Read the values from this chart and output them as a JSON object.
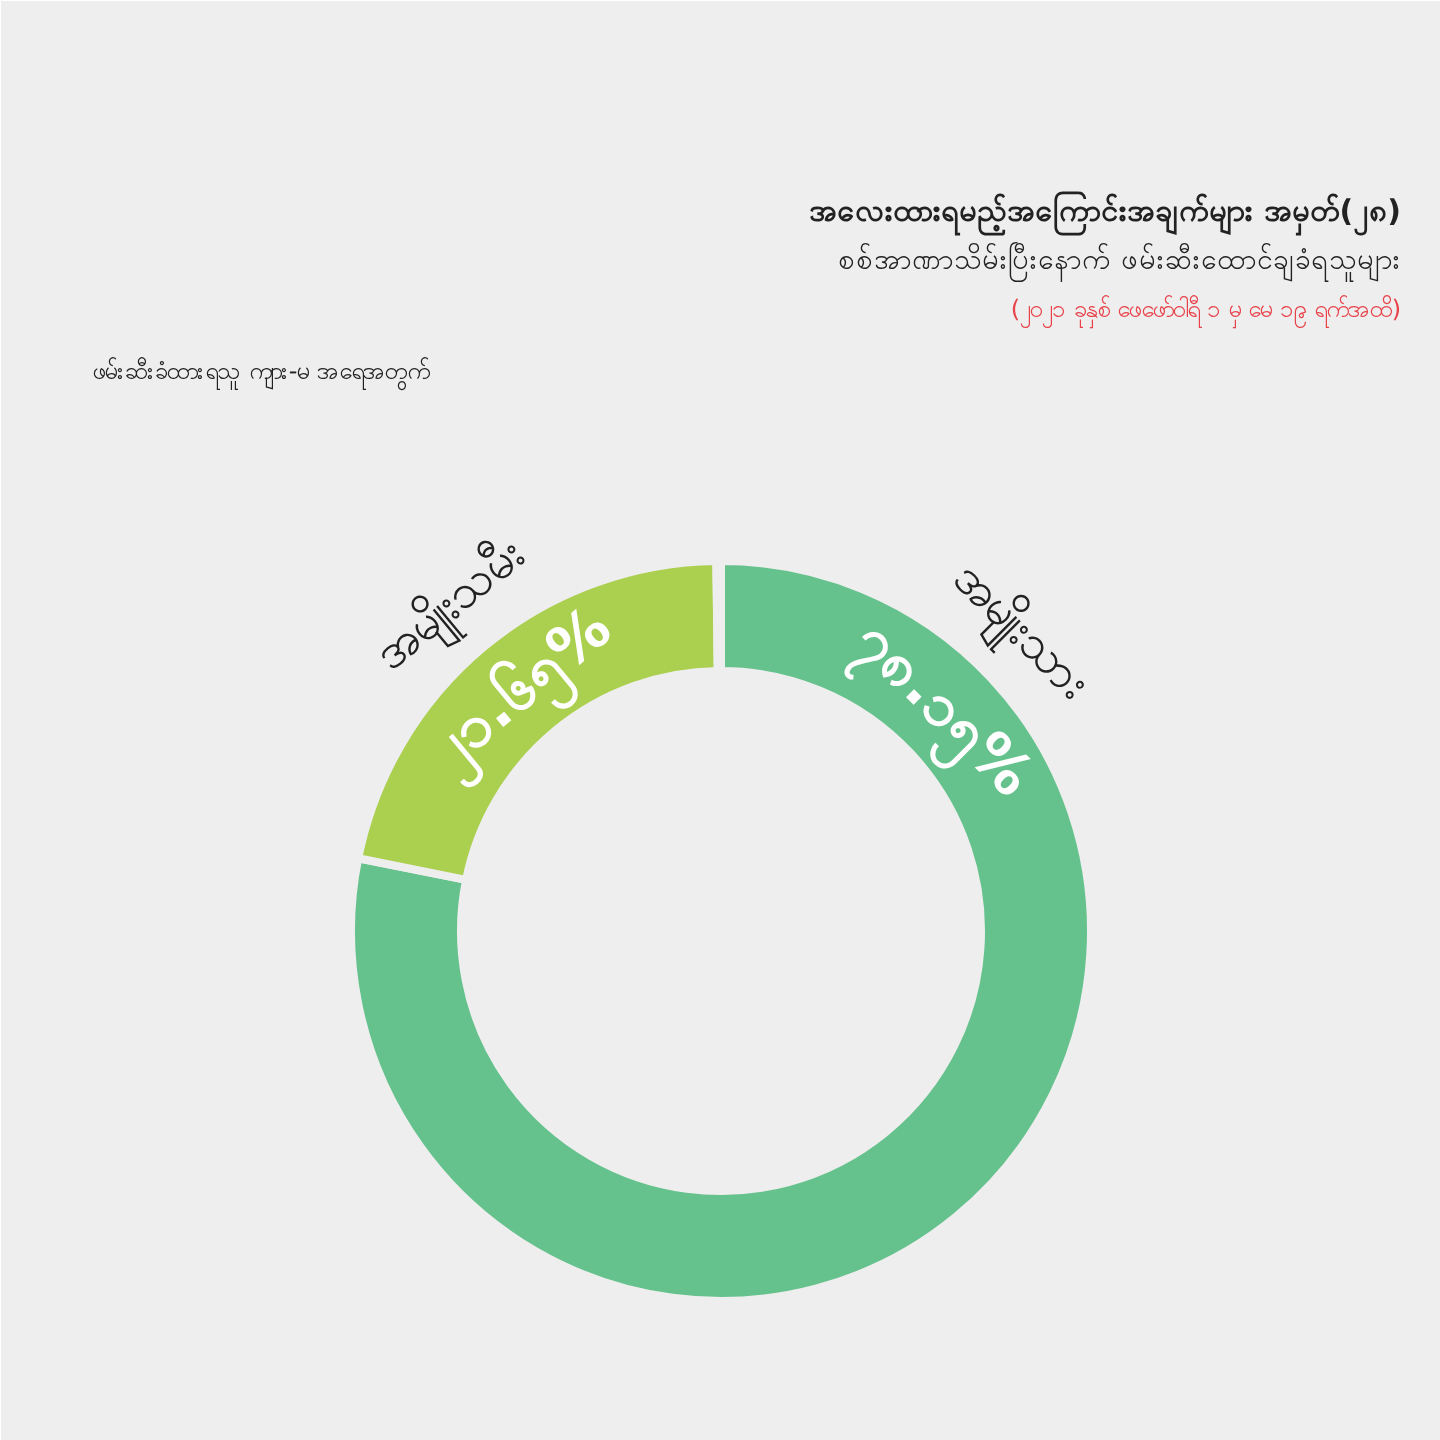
{
  "chart_data": {
    "type": "donut",
    "title": "အလေးထားရမည့်အကြောင်းအချက်များ အမှတ်(၂၈)",
    "subtitle": "စစ်အာဏာသိမ်းပြီးနောက် ဖမ်းဆီးထောင်ချခံရသူများ",
    "annotations": [
      "(၂၀၂၁ ခုနှစ် ဖေဖော်ဝါရီ ၁ မှ မေ ၁၉ ရက်အထိ)"
    ],
    "legend_title": "ဖမ်းဆီးခံထားရသူ ကျား-မ အရေအတွက်",
    "categories": [
      "အမျိုးသား",
      "အမျိုးသမီး",
      null
    ],
    "values": [
      78.15,
      21.65,
      0.2
    ],
    "value_labels": [
      "၇၈.၁၅%",
      "၂၁.၆၅%",
      null
    ],
    "colors": [
      "#66c28d",
      "#abcf4f",
      "#c8c8cc"
    ]
  }
}
